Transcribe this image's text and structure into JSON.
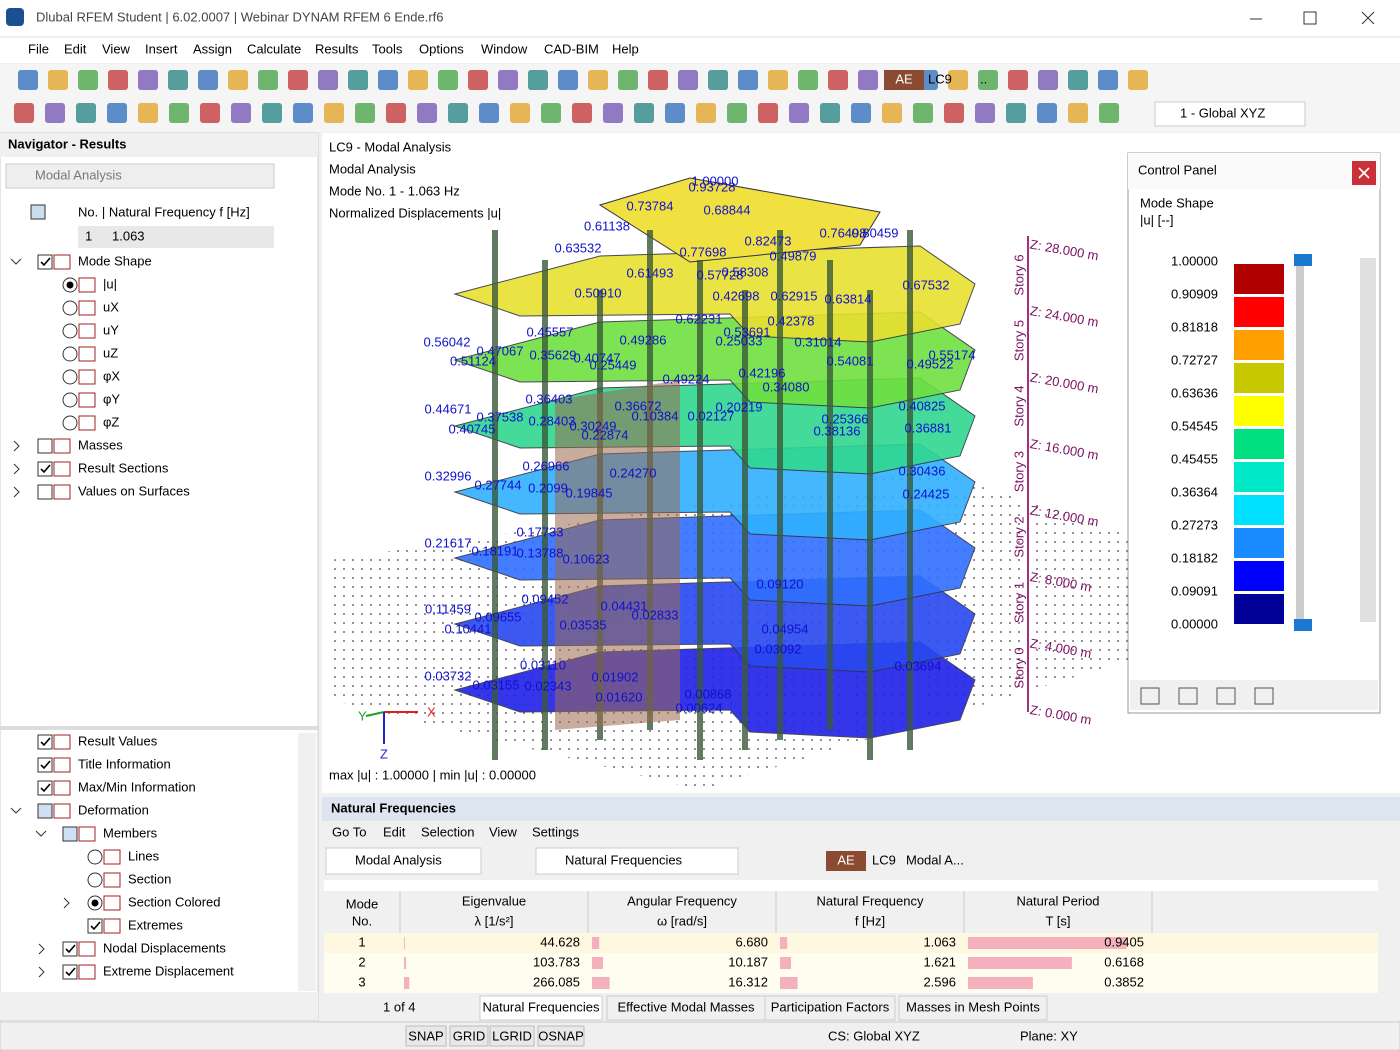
{
  "window": {
    "title": "Dlubal RFEM Student | 6.02.0007 | Webinar DYNAM RFEM 6 Ende.rf6",
    "menu": [
      "File",
      "Edit",
      "View",
      "Insert",
      "Assign",
      "Calculate",
      "Results",
      "Tools",
      "Options",
      "Window",
      "CAD-BIM",
      "Help"
    ],
    "toolbar": {
      "load_case_type": "AE",
      "load_case": "LC9",
      "load_case_more": "..",
      "coord_system": "1 - Global XYZ"
    }
  },
  "navigator": {
    "title": "Navigator - Results",
    "dropdown": "Modal Analysis",
    "freq_header": "No. | Natural Frequency f [Hz]",
    "mode_no": "1",
    "mode_freq": "1.063",
    "tree": [
      {
        "label": "Mode Shape",
        "control": "check",
        "state": "on",
        "level": 0,
        "expander": "open"
      },
      {
        "label": "|u|",
        "control": "radio",
        "state": "on",
        "level": 1
      },
      {
        "label": "uX",
        "control": "radio",
        "state": "off",
        "level": 1
      },
      {
        "label": "uY",
        "control": "radio",
        "state": "off",
        "level": 1
      },
      {
        "label": "uZ",
        "control": "radio",
        "state": "off",
        "level": 1
      },
      {
        "label": "φX",
        "control": "radio",
        "state": "off",
        "level": 1
      },
      {
        "label": "φY",
        "control": "radio",
        "state": "off",
        "level": 1
      },
      {
        "label": "φZ",
        "control": "radio",
        "state": "off",
        "level": 1
      },
      {
        "label": "Masses",
        "control": "check",
        "state": "off",
        "level": 0,
        "expander": "closed"
      },
      {
        "label": "Result Sections",
        "control": "check",
        "state": "on",
        "level": 0,
        "expander": "closed"
      },
      {
        "label": "Values on Surfaces",
        "control": "check",
        "state": "off",
        "level": 0,
        "expander": "closed"
      }
    ],
    "display_tree": [
      {
        "label": "Result Values",
        "control": "check",
        "state": "on",
        "level": 0
      },
      {
        "label": "Title Information",
        "control": "check",
        "state": "on",
        "level": 0
      },
      {
        "label": "Max/Min Information",
        "control": "check",
        "state": "on",
        "level": 0
      },
      {
        "label": "Deformation",
        "control": "check",
        "state": "partial",
        "level": 0,
        "expander": "open"
      },
      {
        "label": "Members",
        "control": "check",
        "state": "partial",
        "level": 1,
        "expander": "open"
      },
      {
        "label": "Lines",
        "control": "radio",
        "state": "off",
        "level": 2
      },
      {
        "label": "Section",
        "control": "radio",
        "state": "off",
        "level": 2
      },
      {
        "label": "Section Colored",
        "control": "radio",
        "state": "on",
        "level": 2,
        "expander": "closed"
      },
      {
        "label": "Extremes",
        "control": "check",
        "state": "on",
        "level": 2
      },
      {
        "label": "Nodal Displacements",
        "control": "check",
        "state": "on",
        "level": 1,
        "expander": "closed"
      },
      {
        "label": "Extreme Displacement",
        "control": "check",
        "state": "on",
        "level": 1,
        "expander": "closed"
      }
    ]
  },
  "view": {
    "title_lines": [
      "LC9 - Modal Analysis",
      "Modal Analysis",
      "Mode No. 1 - 1.063 Hz",
      "Normalized Displacements |u|"
    ],
    "max_min": "max |u| : 1.00000 | min |u| : 0.00000",
    "axes": [
      "X",
      "Y",
      "Z"
    ],
    "elevations": [
      "Z: 28.000 m",
      "Z: 24.000 m",
      "Z: 20.000 m",
      "Z: 16.000 m",
      "Z: 12.000 m",
      "Z: 8.000 m",
      "Z: 4.000 m",
      "Z: 0.000 m"
    ],
    "stories": [
      "Story 6",
      "Story 5",
      "Story 4",
      "Story 3",
      "Story 2",
      "Story 1",
      "Story 0"
    ],
    "model_labels": [
      "1.00000",
      "0.93728",
      "0.73784",
      "0.68844",
      "0.61138",
      "0.63532",
      "0.82473",
      "0.49879",
      "0.76498",
      "0.80459",
      "0.77698",
      "0.61493",
      "0.57728",
      "0.58308",
      "0.50910",
      "0.42698",
      "0.62915",
      "0.63814",
      "0.67532",
      "0.42378",
      "0.62231",
      "0.45557",
      "0.56042",
      "0.47067",
      "0.51124",
      "0.35629",
      "0.40747",
      "0.25449",
      "0.49286",
      "0.53691",
      "0.25033",
      "0.31014",
      "0.54081",
      "0.55174",
      "0.49522",
      "0.42196",
      "0.34080",
      "0.49224",
      "0.44671",
      "0.37538",
      "0.36403",
      "0.40745",
      "0.28403",
      "0.30249",
      "0.22874",
      "0.36672",
      "0.10384",
      "0.02127",
      "0.20219",
      "0.25366",
      "0.38136",
      "0.40825",
      "0.36881",
      "0.32996",
      "0.27744",
      "0.26966",
      "0.2099",
      "0.19845",
      "0.24270",
      "0.30436",
      "0.24425",
      "0.21617",
      "0.18191",
      "0.17733",
      "0.13788",
      "0.10623",
      "0.11459",
      "0.09655",
      "0.09452",
      "0.10441",
      "0.03535",
      "0.04431",
      "0.02833",
      "0.03732",
      "0.03155",
      "0.02343",
      "0.03110",
      "0.01902",
      "0.01620",
      "0.00868",
      "0.00624",
      "0.03092",
      "0.03694",
      "0.09120",
      "0.04954"
    ]
  },
  "control_panel": {
    "title": "Control Panel",
    "section": "Mode Shape",
    "unit": "|u| [--]",
    "legend": [
      "1.00000",
      "0.90909",
      "0.81818",
      "0.72727",
      "0.63636",
      "0.54545",
      "0.45455",
      "0.36364",
      "0.27273",
      "0.18182",
      "0.09091",
      "0.00000"
    ],
    "colors": [
      "#b00000",
      "#ff0000",
      "#ffa000",
      "#c8c800",
      "#ffff00",
      "#00d000",
      "#00e080",
      "#00e8c8",
      "#00e0ff",
      "#1a8cff",
      "#0000ff",
      "#000096"
    ]
  },
  "results": {
    "title": "Natural Frequencies",
    "menu": [
      "Go To",
      "Edit",
      "Selection",
      "View",
      "Settings"
    ],
    "toolbar": {
      "analysis": "Modal Analysis",
      "table": "Natural Frequencies",
      "lc_type": "AE",
      "lc": "LC9",
      "lc_name": "Modal A..."
    },
    "columns": [
      {
        "title": "Mode",
        "unit": "No."
      },
      {
        "title": "Eigenvalue",
        "unit": "λ [1/s²]"
      },
      {
        "title": "Angular Frequency",
        "unit": "ω [rad/s]"
      },
      {
        "title": "Natural Frequency",
        "unit": "f [Hz]"
      },
      {
        "title": "Natural Period",
        "unit": "T [s]"
      }
    ],
    "rows": [
      [
        "1",
        "44.628",
        "6.680",
        "1.063",
        "0.9405"
      ],
      [
        "2",
        "103.783",
        "10.187",
        "1.621",
        "0.6168"
      ],
      [
        "3",
        "266.085",
        "16.312",
        "2.596",
        "0.3852"
      ]
    ],
    "pager": "1 of 4",
    "tabs": [
      "Natural Frequencies",
      "Effective Modal Masses",
      "Participation Factors",
      "Masses in Mesh Points"
    ],
    "active_tab": 0
  },
  "status_bar": {
    "toggles": [
      "SNAP",
      "GRID",
      "LGRID",
      "OSNAP"
    ],
    "cs": "CS: Global XYZ",
    "plane": "Plane: XY"
  }
}
